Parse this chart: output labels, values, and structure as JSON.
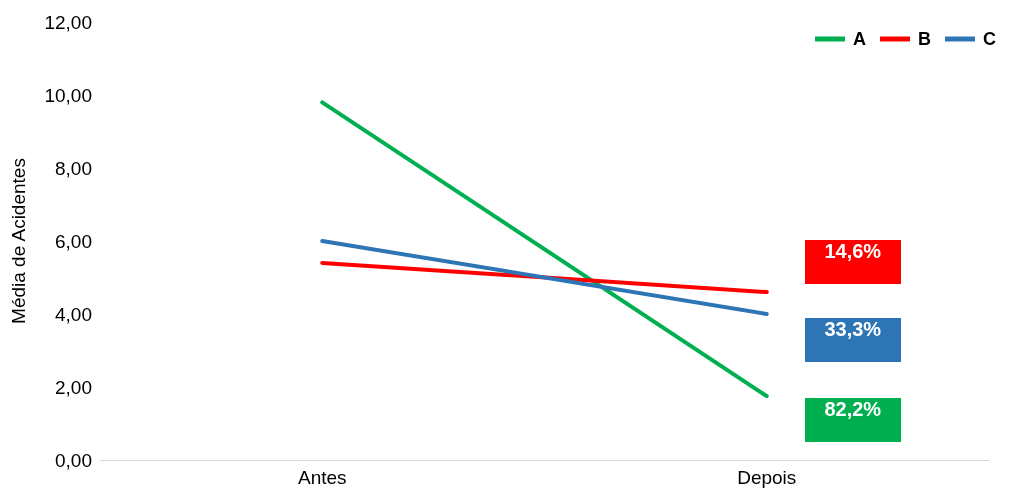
{
  "chart_data": {
    "type": "line",
    "ylabel": "Média de Acidentes",
    "categories": [
      "Antes",
      "Depois"
    ],
    "series": [
      {
        "name": "A",
        "color": "#00b050",
        "values": [
          9.8,
          1.75
        ]
      },
      {
        "name": "B",
        "color": "#ff0000",
        "values": [
          5.4,
          4.6
        ]
      },
      {
        "name": "C",
        "color": "#2e75b6",
        "values": [
          6.0,
          4.0
        ]
      }
    ],
    "annotations": [
      "82,2%",
      "14,6%",
      "33,3%"
    ],
    "ylim": [
      0,
      12
    ],
    "yticks": [
      {
        "value": 0,
        "label": "0,00"
      },
      {
        "value": 2,
        "label": "2,00"
      },
      {
        "value": 4,
        "label": "4,00"
      },
      {
        "value": 6,
        "label": "6,00"
      },
      {
        "value": 8,
        "label": "8,00"
      },
      {
        "value": 10,
        "label": "10,00"
      },
      {
        "value": 12,
        "label": "12,00"
      }
    ],
    "grid": false,
    "legend": "top right",
    "marker": "none",
    "line_style": "solid"
  }
}
